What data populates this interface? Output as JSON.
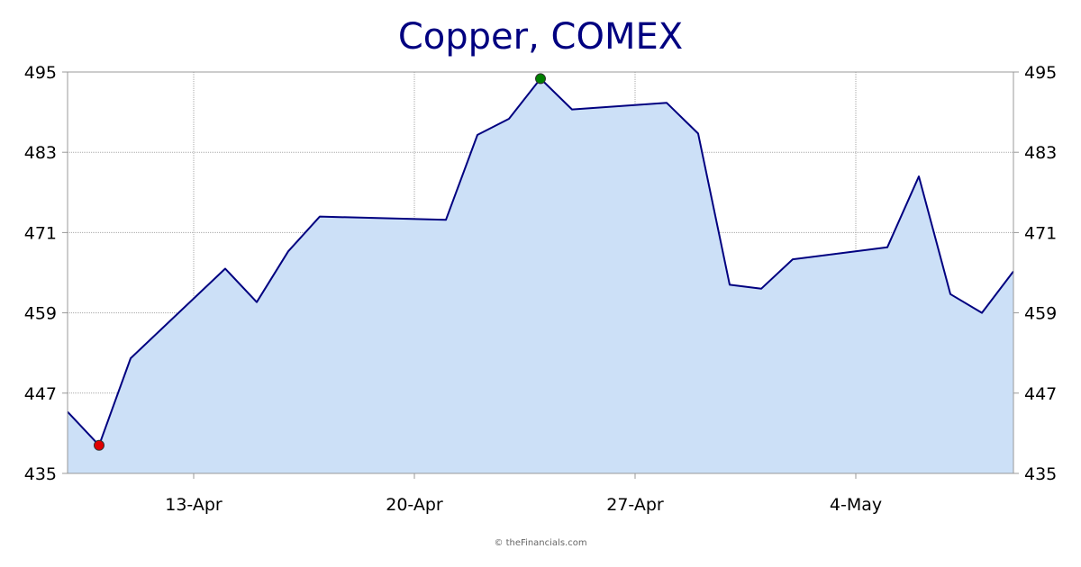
{
  "chart_data": {
    "type": "area",
    "title": "Copper, COMEX",
    "xlabel": "",
    "ylabel": "",
    "ylim": [
      435,
      495
    ],
    "yticks": [
      435,
      447,
      459,
      471,
      483,
      495
    ],
    "y_axis_sides": "both",
    "grid": true,
    "legend": "none",
    "x_tick_labels": [
      {
        "label": "13-Apr",
        "date": "2026-04-13"
      },
      {
        "label": "20-Apr",
        "date": "2026-04-20"
      },
      {
        "label": "27-Apr",
        "date": "2026-04-27"
      },
      {
        "label": "4-May",
        "date": "2026-05-04"
      }
    ],
    "x_range": [
      "2026-04-09",
      "2026-05-09"
    ],
    "series": [
      {
        "x": [
          "2026-04-09",
          "2026-04-10",
          "2026-04-11",
          "2026-04-14",
          "2026-04-15",
          "2026-04-16",
          "2026-04-17",
          "2026-04-21",
          "2026-04-22",
          "2026-04-23",
          "2026-04-24",
          "2026-04-25",
          "2026-04-28",
          "2026-04-29",
          "2026-04-30",
          "2026-05-01",
          "2026-05-02",
          "2026-05-05",
          "2026-05-06",
          "2026-05-07",
          "2026-05-08",
          "2026-05-09"
        ],
        "values": [
          444.2,
          439.2,
          452.2,
          465.6,
          460.6,
          468.2,
          473.4,
          472.9,
          485.6,
          488.0,
          494.0,
          489.4,
          490.4,
          485.8,
          463.2,
          462.6,
          467.0,
          468.8,
          479.4,
          461.8,
          459.0,
          465.2
        ]
      }
    ],
    "markers": [
      {
        "kind": "min",
        "x": "2026-04-10",
        "value": 439.2,
        "color": "#e00000"
      },
      {
        "kind": "max",
        "x": "2026-04-24",
        "value": 494.0,
        "color": "#008000"
      }
    ],
    "colors": {
      "line": "#000080",
      "fill": "#cce0f7",
      "grid": "#aaaaaa",
      "axis": "#999999",
      "title": "#000080"
    }
  },
  "footer": {
    "credit": "© theFinancials.com"
  }
}
